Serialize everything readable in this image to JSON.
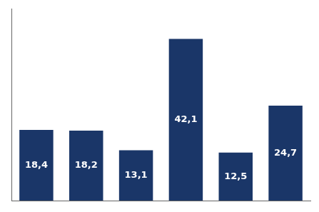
{
  "chart_data": {
    "type": "bar",
    "categories": [
      null,
      null,
      null,
      null,
      null,
      null
    ],
    "values": [
      18.4,
      18.2,
      13.1,
      42.1,
      12.5,
      24.7
    ],
    "value_labels": [
      "18,4",
      "18,2",
      "13,1",
      "42,1",
      "12,5",
      "24,7"
    ],
    "data_labels": true,
    "color": "#1a3668",
    "ylim": [
      0,
      50
    ],
    "grid": false,
    "tick_labels": false
  }
}
